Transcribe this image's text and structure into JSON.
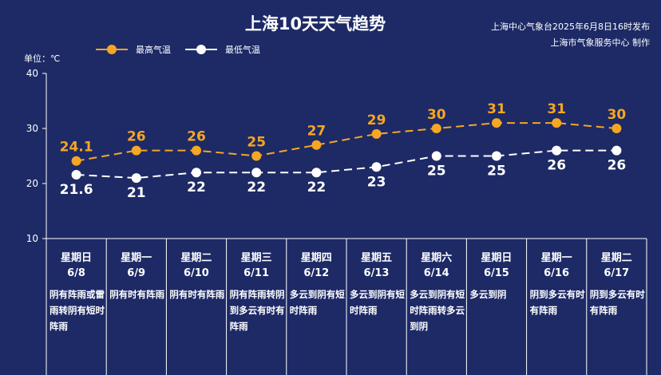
{
  "title": "上海10天天气趋势",
  "publisher": {
    "line1": "上海中心气象台2025年6月8日16时发布",
    "line2": "上海市气象服务中心 制作"
  },
  "legend": {
    "high": "最高气温",
    "low": "最低气温"
  },
  "unit": "单位：℃",
  "colors": {
    "background": "#1d2a66",
    "high": "#f5a623",
    "low": "#ffffff"
  },
  "chart_data": {
    "type": "line",
    "title": "上海10天天气趋势",
    "ylabel": "单位：℃",
    "ylim": [
      10,
      40
    ],
    "yticks": [
      10,
      20,
      30,
      40
    ],
    "categories": [
      "6/8",
      "6/9",
      "6/10",
      "6/11",
      "6/12",
      "6/13",
      "6/14",
      "6/15",
      "6/16",
      "6/17"
    ],
    "series": [
      {
        "name": "最高气温",
        "values": [
          24.1,
          26,
          26,
          25,
          27,
          29,
          30,
          31,
          31,
          30
        ]
      },
      {
        "name": "最低气温",
        "values": [
          21.6,
          21,
          22,
          22,
          22,
          23,
          25,
          25,
          26,
          26
        ]
      }
    ],
    "legend_position": "top-left",
    "grid": false
  },
  "days": [
    {
      "weekday": "星期日",
      "date": "6/8",
      "desc": "阴有阵雨或雷雨转阴有短时阵雨"
    },
    {
      "weekday": "星期一",
      "date": "6/9",
      "desc": "阴有时有阵雨"
    },
    {
      "weekday": "星期二",
      "date": "6/10",
      "desc": "阴有时有阵雨"
    },
    {
      "weekday": "星期三",
      "date": "6/11",
      "desc": "阴有阵雨转阴到多云有时有阵雨"
    },
    {
      "weekday": "星期四",
      "date": "6/12",
      "desc": "多云到阴有短时阵雨"
    },
    {
      "weekday": "星期五",
      "date": "6/13",
      "desc": "多云到阴有短时阵雨"
    },
    {
      "weekday": "星期六",
      "date": "6/14",
      "desc": "多云到阴有短时阵雨转多云到阴"
    },
    {
      "weekday": "星期日",
      "date": "6/15",
      "desc": "多云到阴"
    },
    {
      "weekday": "星期一",
      "date": "6/16",
      "desc": "阴到多云有时有阵雨"
    },
    {
      "weekday": "星期二",
      "date": "6/17",
      "desc": "阴到多云有时有阵雨"
    }
  ]
}
